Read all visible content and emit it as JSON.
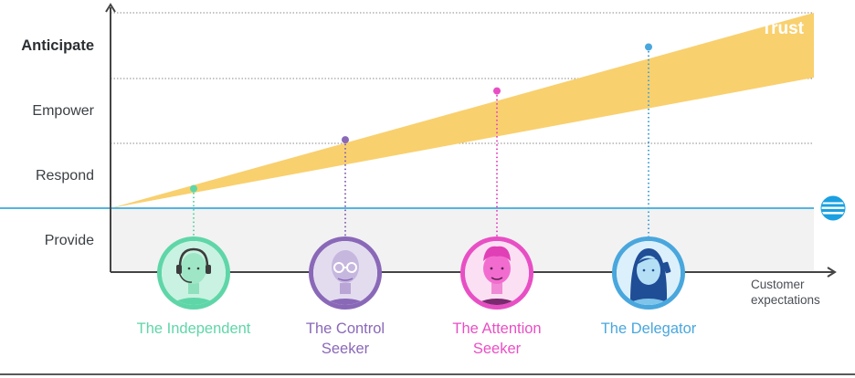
{
  "y_levels": [
    {
      "label": "Anticipate",
      "bold": true
    },
    {
      "label": "Empower",
      "bold": false
    },
    {
      "label": "Respond",
      "bold": false
    },
    {
      "label": "Provide",
      "bold": false
    }
  ],
  "band_label": "Trust",
  "x_axis_label": [
    "Customer",
    "expectations"
  ],
  "personas": [
    {
      "name_lines": [
        "The Independent"
      ],
      "color": "#5fd6a8",
      "level": 0.4
    },
    {
      "name_lines": [
        "The Control",
        "Seeker"
      ],
      "color": "#8a68b8",
      "level": 1.4
    },
    {
      "name_lines": [
        "The Attention",
        "Seeker"
      ],
      "color": "#e84fc4",
      "level": 2.4
    },
    {
      "name_lines": [
        "The Delegator"
      ],
      "color": "#49a7dd",
      "level": 3.3
    }
  ],
  "colors": {
    "trust_band": "#f9d06e",
    "baseline": "#55b4e0",
    "provide_zone": "#f2f2f2",
    "axis": "#444444",
    "gridline": "#8a8a8a"
  },
  "logo_icon": "att-globe-icon"
}
